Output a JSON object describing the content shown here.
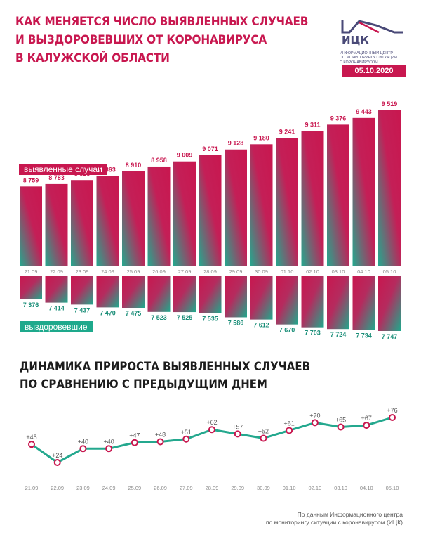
{
  "header": {
    "title_lines": [
      "Как меняется число выявленных случаев",
      "и выздоровевших от коронавируса",
      "в Калужской области"
    ],
    "logo_abbr": "ИЦК",
    "logo_text_lines": [
      "Информационный центр",
      "по мониторингу ситуации",
      "с коронавирусом"
    ],
    "date": "05.10.2020"
  },
  "colors": {
    "accent": "#c8174f",
    "teal": "#1ea98c",
    "text_dark": "#1c1c1c",
    "text_muted": "#666666"
  },
  "chart_data": [
    {
      "type": "bar",
      "categories": [
        "21.09",
        "22.09",
        "23.09",
        "24.09",
        "25.09",
        "26.09",
        "27.09",
        "28.09",
        "29.09",
        "30.09",
        "01.10",
        "02.10",
        "03.10",
        "04.10",
        "05.10"
      ],
      "series": [
        {
          "name": "выявленные случаи",
          "values": [
            8759,
            8783,
            8823,
            8863,
            8910,
            8958,
            9009,
            9071,
            9128,
            9180,
            9241,
            9311,
            9376,
            9443,
            9519
          ],
          "labels": [
            "8 759",
            "8 783",
            "8 823",
            "8 863",
            "8 910",
            "8 958",
            "9 009",
            "9 071",
            "9 128",
            "9 180",
            "9 241",
            "9 311",
            "9 376",
            "9 443",
            "9 519"
          ]
        },
        {
          "name": "выздоровевшие",
          "values": [
            7376,
            7414,
            7437,
            7470,
            7475,
            7523,
            7525,
            7535,
            7586,
            7612,
            7670,
            7703,
            7724,
            7734,
            7747
          ],
          "labels": [
            "7 376",
            "7 414",
            "7 437",
            "7 470",
            "7 475",
            "7 523",
            "7 525",
            "7 535",
            "7 586",
            "7 612",
            "7 670",
            "7 703",
            "7 724",
            "7 734",
            "7 747"
          ]
        }
      ]
    },
    {
      "type": "line",
      "title_lines": [
        "Динамика прироста выявленных случаев",
        "по сравнению с предыдущим днем"
      ],
      "categories": [
        "21.09",
        "22.09",
        "23.09",
        "24.09",
        "25.09",
        "26.09",
        "27.09",
        "28.09",
        "29.09",
        "30.09",
        "01.10",
        "02.10",
        "03.10",
        "04.10",
        "05.10"
      ],
      "series": [
        {
          "values": [
            45,
            24,
            40,
            40,
            47,
            48,
            51,
            62,
            57,
            52,
            61,
            70,
            65,
            67,
            76
          ],
          "labels": [
            "+45",
            "+24",
            "+40",
            "+40",
            "+47",
            "+48",
            "+51",
            "+62",
            "+57",
            "+52",
            "+61",
            "+70",
            "+65",
            "+67",
            "+76"
          ]
        }
      ]
    }
  ],
  "footer": {
    "source_lines": [
      "По данным Информационного центра",
      "по мониторингу ситуации с коронавирусом (ИЦК)"
    ]
  }
}
